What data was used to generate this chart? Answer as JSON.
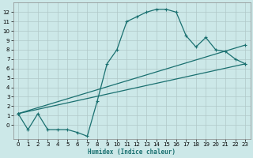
{
  "xlabel": "Humidex (Indice chaleur)",
  "xlim": [
    -0.5,
    23.5
  ],
  "ylim": [
    -1.5,
    13.0
  ],
  "yticks": [
    0,
    1,
    2,
    3,
    4,
    5,
    6,
    7,
    8,
    9,
    10,
    11,
    12
  ],
  "xticks": [
    0,
    1,
    2,
    3,
    4,
    5,
    6,
    7,
    8,
    9,
    10,
    11,
    12,
    13,
    14,
    15,
    16,
    17,
    18,
    19,
    20,
    21,
    22,
    23
  ],
  "bg_color": "#cce8e8",
  "grid_color": "#b0c8c8",
  "line_color": "#1a7070",
  "curve_x": [
    0,
    1,
    2,
    3,
    4,
    5,
    6,
    7,
    8,
    9,
    10,
    11,
    12,
    13,
    14,
    15,
    16,
    17,
    18,
    19,
    20,
    21,
    22,
    23
  ],
  "curve_y": [
    1.2,
    -0.5,
    1.2,
    -0.5,
    -0.5,
    -0.5,
    -0.8,
    -1.2,
    2.5,
    6.5,
    8.0,
    11.0,
    11.5,
    12.0,
    12.3,
    12.3,
    12.0,
    9.5,
    8.3,
    9.3,
    8.0,
    7.8,
    7.0,
    6.5
  ],
  "line1_x": [
    0,
    23
  ],
  "line1_y": [
    1.2,
    8.5
  ],
  "line2_x": [
    0,
    23
  ],
  "line2_y": [
    1.2,
    6.5
  ]
}
